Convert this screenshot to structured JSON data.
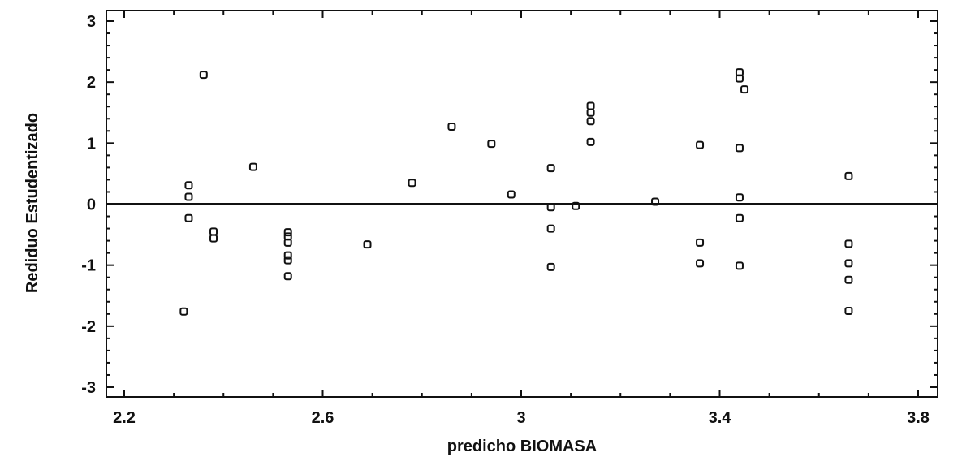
{
  "chart_data": {
    "type": "scatter",
    "title": "",
    "xlabel": "predicho BIOMASA",
    "ylabel": "Rediduo Estudentizado",
    "xlim": [
      2.2,
      3.8
    ],
    "ylim": [
      -3,
      3
    ],
    "xticks": [
      "2.2",
      "2.6",
      "3",
      "3.4",
      "3.8"
    ],
    "yticks": [
      "-3",
      "-2",
      "-1",
      "0",
      "1",
      "2",
      "3"
    ],
    "reference_line_y": 0,
    "grid": false,
    "legend": "none",
    "marker": "hollow-square",
    "colors": {
      "marker": "#111111",
      "axis": "#111111",
      "background": "#ffffff"
    },
    "points": [
      {
        "x": 2.32,
        "y": -1.76
      },
      {
        "x": 2.33,
        "y": 0.31
      },
      {
        "x": 2.33,
        "y": 0.12
      },
      {
        "x": 2.33,
        "y": -0.23
      },
      {
        "x": 2.36,
        "y": 2.12
      },
      {
        "x": 2.38,
        "y": -0.45
      },
      {
        "x": 2.38,
        "y": -0.56
      },
      {
        "x": 2.46,
        "y": 0.61
      },
      {
        "x": 2.53,
        "y": -0.46
      },
      {
        "x": 2.53,
        "y": -0.53
      },
      {
        "x": 2.53,
        "y": -0.63
      },
      {
        "x": 2.53,
        "y": -0.84
      },
      {
        "x": 2.53,
        "y": -0.92
      },
      {
        "x": 2.53,
        "y": -1.18
      },
      {
        "x": 2.69,
        "y": -0.66
      },
      {
        "x": 2.78,
        "y": 0.35
      },
      {
        "x": 2.86,
        "y": 1.27
      },
      {
        "x": 2.94,
        "y": 0.99
      },
      {
        "x": 2.98,
        "y": 0.16
      },
      {
        "x": 3.06,
        "y": 0.59
      },
      {
        "x": 3.06,
        "y": -0.05
      },
      {
        "x": 3.06,
        "y": -0.4
      },
      {
        "x": 3.06,
        "y": -1.03
      },
      {
        "x": 3.11,
        "y": -0.03
      },
      {
        "x": 3.14,
        "y": 1.61
      },
      {
        "x": 3.14,
        "y": 1.5
      },
      {
        "x": 3.14,
        "y": 1.36
      },
      {
        "x": 3.14,
        "y": 1.02
      },
      {
        "x": 3.27,
        "y": 0.04
      },
      {
        "x": 3.36,
        "y": 0.97
      },
      {
        "x": 3.36,
        "y": -0.63
      },
      {
        "x": 3.36,
        "y": -0.97
      },
      {
        "x": 3.44,
        "y": 2.16
      },
      {
        "x": 3.44,
        "y": 2.06
      },
      {
        "x": 3.44,
        "y": 0.92
      },
      {
        "x": 3.44,
        "y": 0.11
      },
      {
        "x": 3.44,
        "y": -0.23
      },
      {
        "x": 3.44,
        "y": -1.01
      },
      {
        "x": 3.45,
        "y": 1.88
      },
      {
        "x": 3.66,
        "y": 0.46
      },
      {
        "x": 3.66,
        "y": -0.65
      },
      {
        "x": 3.66,
        "y": -0.97
      },
      {
        "x": 3.66,
        "y": -1.24
      },
      {
        "x": 3.66,
        "y": -1.75
      }
    ]
  }
}
